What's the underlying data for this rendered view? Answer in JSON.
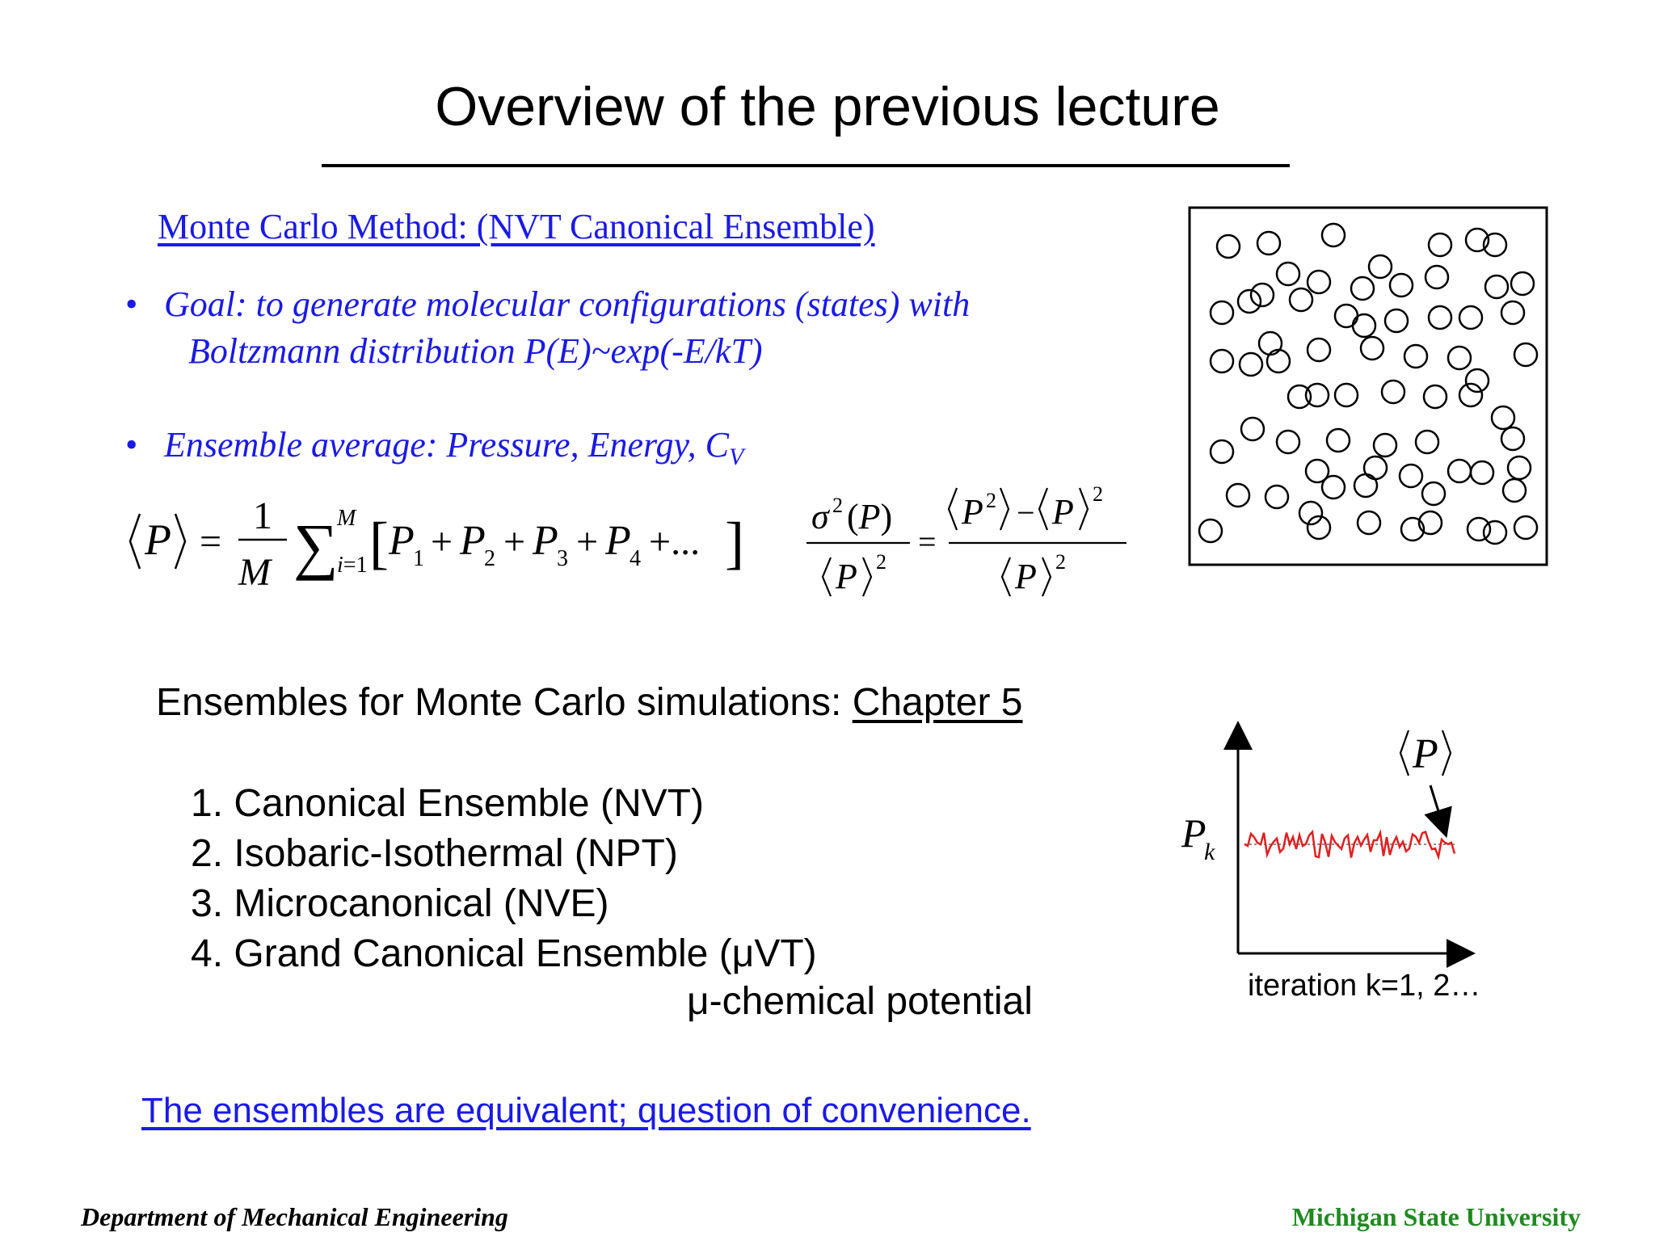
{
  "title": "Overview of the previous lecture",
  "mc_heading": "Monte Carlo Method: (NVT Canonical Ensemble)",
  "bullets": {
    "goal_line1": "Goal: to generate molecular configurations (states) with",
    "goal_line2": "Boltzmann distribution P(E)~exp(-E/kT)",
    "ensemble_avg": "Ensemble average: Pressure, Energy, C",
    "ensemble_avg_sub": "V"
  },
  "ensembles": {
    "heading_prefix": "Ensembles for Monte Carlo simulations: ",
    "heading_chapter": "Chapter 5",
    "items": [
      "1. Canonical Ensemble (NVT)",
      "2. Isobaric-Isothermal (NPT)",
      "3. Microcanonical (NVE)",
      "4. Grand Canonical Ensemble (μVT)"
    ],
    "mu_note": "μ-chemical potential"
  },
  "equivalence_note": "The ensembles are equivalent; question of convenience.",
  "plot": {
    "ylabel": "P",
    "ylabel_sub": "k",
    "avg_label": "P",
    "xlabel": "iteration k=1, 2…"
  },
  "footer": {
    "left": "Department of Mechanical Engineering",
    "right": "Michigan State University"
  },
  "colors": {
    "accent_blue": "#1a1ae6",
    "trace_red": "#e02020",
    "footer_green": "#1f8a1f"
  }
}
